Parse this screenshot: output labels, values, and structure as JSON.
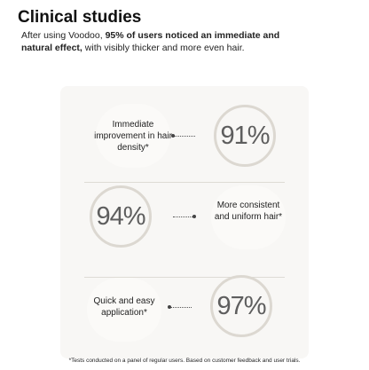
{
  "header": {
    "title": "Clinical studies",
    "intro": [
      "After using Voodoo, ",
      "95% of users noticed an immediate and natural effect,",
      " with visibly thicker and more even hair."
    ]
  },
  "stats": [
    {
      "label": "Immediate improvement in hair density*",
      "value": "91%"
    },
    {
      "label": "More consistent and uniform hair*",
      "value": "94%"
    },
    {
      "label": "Quick and easy application*",
      "value": "97%"
    }
  ],
  "footnote": "*Tests conducted on a panel of regular users. Based on customer feedback and user trials."
}
